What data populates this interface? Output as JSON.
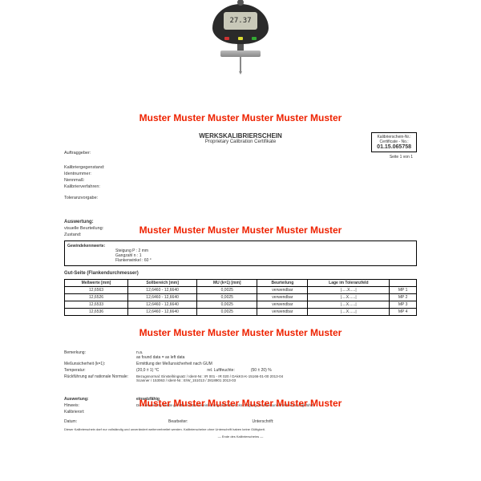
{
  "gauge": {
    "reading": "27.37"
  },
  "muster_text": "Muster Muster Muster Muster Muster Muster",
  "muster_text2": "Muster Muster  Muster Muster Muster Muster",
  "header": {
    "title": "WERKSKALIBRIERSCHEIN",
    "subtitle": "Proprietary Calibration Certifikate",
    "cert_label": "Kalibrierschein-Nr.:",
    "cert_label2": "Certificate - No.:",
    "cert_no": "01.15.065758",
    "page": "Seite 1 von 1"
  },
  "labels": {
    "auftraggeber": "Auftraggeber:",
    "kalibrier": "Kalibriergegenstand:",
    "ident": "Identnummer:",
    "nenn": "Nennmaß:",
    "verfahren": "Kalibrierverfahren:",
    "toleranz": "Toleranzvorgabe:",
    "auswertung": "Auswertung:",
    "visuell": "visuelle Beurteilung:",
    "zustand": "Zustand:"
  },
  "gewinde": {
    "title": "Gewindekennwerte:",
    "l1": "Steigung P :  2 mm",
    "l2": "Gangzahl n :  1",
    "l3": "Flankenwinkel :  60 °"
  },
  "gut_title": "Gut-Seite (Flankendurchmesser)",
  "table": {
    "headers": [
      "Meßwerte [mm]",
      "Sollbereich [mm]",
      "MU (k=1) [mm]",
      "Beurteilung",
      "Lage im Toleranzfeld",
      ""
    ],
    "rows": [
      [
        "12,6563",
        "12,6460 - 12,6640",
        "0,0025",
        "verwendbar",
        "|.....X.....|",
        "MP 1"
      ],
      [
        "12,6526",
        "12,6460 - 12,6640",
        "0,0025",
        "verwendbar",
        "|....X......|",
        "MP 2"
      ],
      [
        "12,6533",
        "12,6460 - 12,6640",
        "0,0025",
        "verwendbar",
        "|....X......|",
        "MP 3"
      ],
      [
        "12,6536",
        "12,6460 - 12,6640",
        "0,0025",
        "verwendbar",
        "|....X......|",
        "MP 4"
      ]
    ]
  },
  "lower": {
    "bemerkung_l": "Bemerkung:",
    "bemerkung_v": "n.a.\nas found data = as left data",
    "mess_l": "Meßunsicherheit (k=1):",
    "mess_v": "Ermittlung der Meßunsicherheit nach GUM",
    "temp_l": "Temperatur:",
    "temp_v": "(20,0 ± 1) °C",
    "luft_l": "rel. Luftfeuchte:",
    "luft_v": "(50 ± 20) %",
    "ruck_l": "Rückführung auf nationale Normale:",
    "ruck_v": "Bezugsnormal: Einstellringsatz / Ident-Nr.: IR 001 - IR 020 / DAkKS-K-15166-01-00 2013-04\nScanner / 153063 / Ident-Nr.: E/W_151013 / 2818901 2013-03",
    "ausw_l": "Auswertung:",
    "ausw_v": "einsatzfähig",
    "hinweis_l": "Hinweis:",
    "hinweis_v": "Die Auswertung wurde gemäß Kundenvereinbarung ohne Berücksichtigung der Messunsicherheit durchgeführt.",
    "kal_l": "Kalibrierort:",
    "datum_l": "Datum:",
    "bearb_l": "Bearbeiter:",
    "unter_l": "Unterschrift:",
    "foot1": "Dieser Kalibrierschein darf nur vollständig und unverändert weiterverbreitet werden. Kalibrierscheine ohne Unterschrift haben keine Gültigkeit.",
    "foot2": "— Ende des Kalibrierscheins —"
  }
}
